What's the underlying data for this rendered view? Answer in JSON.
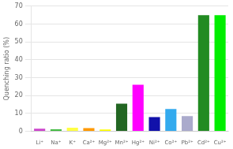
{
  "chart_data": {
    "type": "bar",
    "categories": [
      "Li⁺",
      "Na⁺",
      "K⁺",
      "Ca²⁺",
      "Mg²⁺",
      "Mn²⁺",
      "Hg²⁺",
      "Ni²⁺",
      "Co²⁺",
      "Pb²⁺",
      "Cd²⁺",
      "Cu²⁺"
    ],
    "values": [
      1.5,
      1.2,
      2.0,
      1.8,
      1.0,
      15.5,
      26.0,
      8.0,
      12.5,
      8.5,
      65.0,
      65.0
    ],
    "colors": [
      "#cc44cc",
      "#44bb44",
      "#ffff44",
      "#ff9900",
      "#ffff00",
      "#226622",
      "#ff00ff",
      "#1111aa",
      "#33aaee",
      "#aaaacc",
      "#228B22",
      "#00ee00"
    ],
    "ylabel": "Quenching ratio (%)",
    "ylim": [
      0,
      70
    ],
    "yticks": [
      0,
      10,
      20,
      30,
      40,
      50,
      60,
      70
    ],
    "grid": true
  }
}
